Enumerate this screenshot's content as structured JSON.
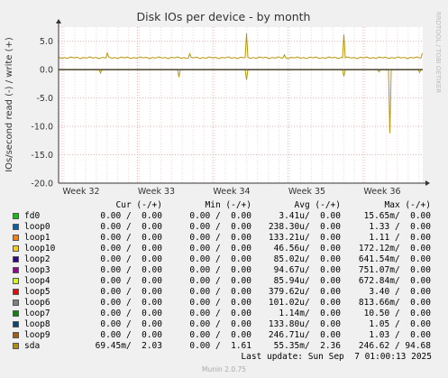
{
  "chart_data": {
    "type": "line",
    "title": "Disk IOs per device - by month",
    "ylabel": "IOs/second read (-) / write (+)",
    "ylim": [
      -20,
      7.5
    ],
    "yticks": [
      5.0,
      0.0,
      -5.0,
      -10.0,
      -15.0,
      -20.0
    ],
    "ytick_labels": [
      "5.0",
      "0.0",
      "-5.0",
      "-10.0",
      "-15.0",
      "-20.0"
    ],
    "x_ticks": [
      "Week 32",
      "Week 33",
      "Week 34",
      "Week 35",
      "Week 36"
    ],
    "side_label": "RRDTOOL / TOBI OETIKER",
    "grid": true,
    "series": [
      {
        "name": "sda",
        "color": "#b8960a",
        "write": {
          "baseline": 2.1,
          "spikes": [
            {
              "week": 32.35,
              "value": 2.9
            },
            {
              "week": 33.45,
              "value": 2.8
            },
            {
              "week": 34.2,
              "value": 6.4
            },
            {
              "week": 34.7,
              "value": 2.6
            },
            {
              "week": 35.5,
              "value": 6.2
            },
            {
              "week": 36.6,
              "value": 2.9
            }
          ]
        },
        "read": {
          "baseline": 0.0,
          "spikes": [
            {
              "week": 32.25,
              "value": -0.6
            },
            {
              "week": 33.3,
              "value": -1.3
            },
            {
              "week": 34.2,
              "value": -1.8
            },
            {
              "week": 35.5,
              "value": -1.2
            },
            {
              "week": 35.95,
              "value": -0.4
            },
            {
              "week": 36.1,
              "value": -11.2
            },
            {
              "week": 36.5,
              "value": -0.5
            }
          ]
        }
      }
    ]
  },
  "legend": {
    "headers": {
      "cur": "Cur (-/+)",
      "min": "Min (-/+)",
      "avg": "Avg (-/+)",
      "max": "Max (-/+)"
    },
    "rows": [
      {
        "name": "fd0",
        "color": "#00cc00",
        "cur": "0.00 /  0.00",
        "min": "0.00 /  0.00",
        "avg": "3.41u/  0.00",
        "max": "15.65m/  0.00"
      },
      {
        "name": "loop0",
        "color": "#0066b3",
        "cur": "0.00 /  0.00",
        "min": "0.00 /  0.00",
        "avg": "238.30u/  0.00",
        "max": "1.33 /  0.00"
      },
      {
        "name": "loop1",
        "color": "#ff8000",
        "cur": "0.00 /  0.00",
        "min": "0.00 /  0.00",
        "avg": "133.21u/  0.00",
        "max": "1.11 /  0.00"
      },
      {
        "name": "loop10",
        "color": "#ffcc00",
        "cur": "0.00 /  0.00",
        "min": "0.00 /  0.00",
        "avg": "46.56u/  0.00",
        "max": "172.12m/  0.00"
      },
      {
        "name": "loop2",
        "color": "#330099",
        "cur": "0.00 /  0.00",
        "min": "0.00 /  0.00",
        "avg": "85.02u/  0.00",
        "max": "641.54m/  0.00"
      },
      {
        "name": "loop3",
        "color": "#990099",
        "cur": "0.00 /  0.00",
        "min": "0.00 /  0.00",
        "avg": "94.67u/  0.00",
        "max": "751.07m/  0.00"
      },
      {
        "name": "loop4",
        "color": "#ccff00",
        "cur": "0.00 /  0.00",
        "min": "0.00 /  0.00",
        "avg": "85.94u/  0.00",
        "max": "672.84m/  0.00"
      },
      {
        "name": "loop5",
        "color": "#ff0000",
        "cur": "0.00 /  0.00",
        "min": "0.00 /  0.00",
        "avg": "379.62u/  0.00",
        "max": "3.40 /  0.00"
      },
      {
        "name": "loop6",
        "color": "#808080",
        "cur": "0.00 /  0.00",
        "min": "0.00 /  0.00",
        "avg": "101.02u/  0.00",
        "max": "813.66m/  0.00"
      },
      {
        "name": "loop7",
        "color": "#008f00",
        "cur": "0.00 /  0.00",
        "min": "0.00 /  0.00",
        "avg": "1.14m/  0.00",
        "max": "10.50 /  0.00"
      },
      {
        "name": "loop8",
        "color": "#00487d",
        "cur": "0.00 /  0.00",
        "min": "0.00 /  0.00",
        "avg": "133.80u/  0.00",
        "max": "1.05 /  0.00"
      },
      {
        "name": "loop9",
        "color": "#b35a00",
        "cur": "0.00 /  0.00",
        "min": "0.00 /  0.00",
        "avg": "246.71u/  0.00",
        "max": "1.03 /  0.00"
      },
      {
        "name": "sda",
        "color": "#b38f00",
        "cur": "69.45m/  2.03",
        "min": "0.00 /  1.61",
        "avg": "55.35m/  2.36",
        "max": "246.62 / 94.68"
      }
    ]
  },
  "last_update": "Last update: Sun Sep  7 01:00:13 2025",
  "munin_version": "Munin 2.0.75"
}
